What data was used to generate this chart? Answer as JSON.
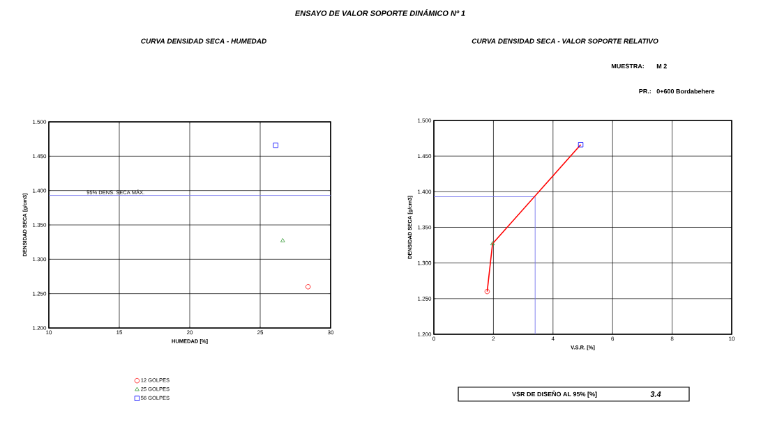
{
  "chart_data": [
    {
      "type": "scatter",
      "title": "CURVA DENSIDAD SECA - HUMEDAD",
      "xlabel": "HUMEDAD [%]",
      "ylabel": "DENSIDAD SECA [g/cm3]",
      "annotations": [
        "ENSAYO DE VALOR SOPORTE DINÁMICO Nº 1"
      ],
      "series": [
        {
          "name": "12 GOLPES",
          "color": "#ff0000",
          "marker": "circle",
          "x": [
            28.4
          ],
          "values": [
            1.26
          ]
        },
        {
          "name": "25 GOLPES",
          "color": "#339933",
          "marker": "triangle",
          "x": [
            26.6
          ],
          "values": [
            1.327
          ]
        },
        {
          "name": "56 GOLPES",
          "color": "#0000ff",
          "marker": "square",
          "x": [
            26.1
          ],
          "values": [
            1.466
          ]
        }
      ],
      "xlim": [
        10,
        30
      ],
      "xticks": [
        10,
        15,
        20,
        25,
        30
      ],
      "ylim": [
        1.2,
        1.5
      ],
      "yticks": [
        {
          "value": 1.2,
          "label": "1.200"
        },
        {
          "value": 1.25,
          "label": "1.250"
        },
        {
          "value": 1.3,
          "label": "1.300"
        },
        {
          "value": 1.35,
          "label": "1.350"
        },
        {
          "value": 1.4,
          "label": "1.400"
        },
        {
          "value": 1.45,
          "label": "1.450"
        },
        {
          "value": 1.5,
          "label": "1.500"
        }
      ],
      "ref_lines": [
        {
          "axis": "y",
          "value": 1.393,
          "label": "95% DENS. SECA MÁX.",
          "color": "#7777ee"
        }
      ],
      "grid": true,
      "legend": "bottom"
    },
    {
      "type": "line",
      "title": "CURVA DENSIDAD SECA - VALOR SOPORTE RELATIVO",
      "xlabel": "V.S.R. [%]",
      "ylabel": "DENSIDAD SECA [g/cm3]",
      "annotations": [
        "MUESTRA:",
        "M 2",
        "PR.:",
        "0+600 Bordabehere",
        "VSR DE DISEÑO AL 95% [%]",
        "3.4"
      ],
      "series": [
        {
          "type": "line",
          "color": "#ff0000",
          "marker": "none",
          "x": [
            1.79,
            1.97,
            4.93
          ],
          "values": [
            1.26,
            1.327,
            1.466
          ]
        },
        {
          "type": "scatter",
          "color": "#ff0000",
          "marker": "circle",
          "x": [
            1.79
          ],
          "values": [
            1.26
          ]
        },
        {
          "type": "scatter",
          "color": "#339933",
          "marker": "triangle",
          "x": [
            1.97
          ],
          "values": [
            1.327
          ]
        },
        {
          "type": "scatter",
          "color": "#0000ff",
          "marker": "square",
          "x": [
            4.93
          ],
          "values": [
            1.466
          ]
        }
      ],
      "xlim": [
        0,
        10
      ],
      "xticks": [
        0,
        2,
        4,
        6,
        8,
        10
      ],
      "ylim": [
        1.2,
        1.5
      ],
      "yticks": [
        {
          "value": 1.2,
          "label": "1.200"
        },
        {
          "value": 1.25,
          "label": "1.250"
        },
        {
          "value": 1.3,
          "label": "1.300"
        },
        {
          "value": 1.35,
          "label": "1.350"
        },
        {
          "value": 1.4,
          "label": "1.400"
        },
        {
          "value": 1.45,
          "label": "1.450"
        },
        {
          "value": 1.5,
          "label": "1.500"
        }
      ],
      "ref_lines": [
        {
          "axis": "y",
          "value": 1.393,
          "color": "#7777ee"
        },
        {
          "axis": "x",
          "value": 3.4,
          "color": "#7777ee"
        }
      ],
      "grid": true
    }
  ]
}
